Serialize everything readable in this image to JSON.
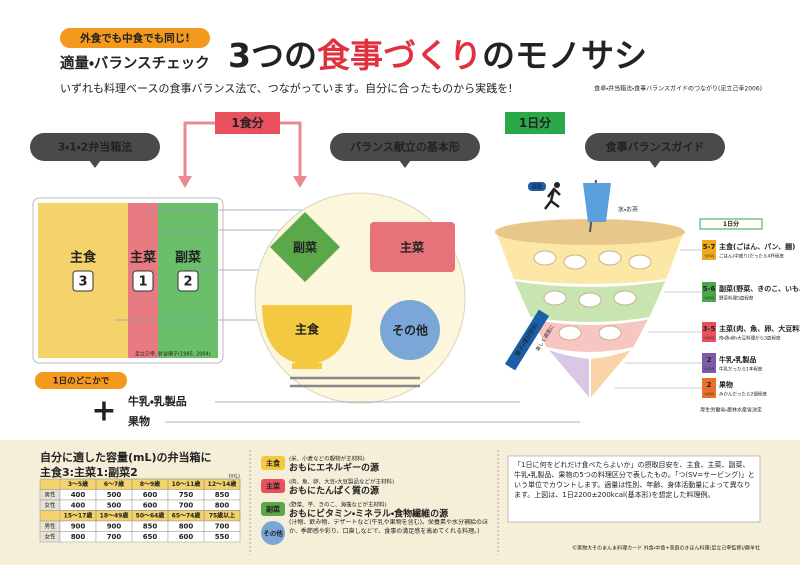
{
  "header": {
    "badge": "外食でも中食でも同じ!",
    "subtitle": "適量・バランスチェック",
    "title": [
      "3つの",
      "食事づくり",
      "のモノサシ"
    ],
    "lead": "いずれも料理ベースの食事バランス法で、つながっています。自分に合ったものから実践を!",
    "source": "食卓・弁当箱法・食事バランスガイドのつながり(足立己幸2006)"
  },
  "links": {
    "meal": "1食分",
    "day": "1日分"
  },
  "sections": [
    "3・1・2弁当箱法",
    "バランス献立の基本形",
    "食事バランスガイド"
  ],
  "bento": {
    "parts": [
      {
        "name": "主食",
        "ratio": 3
      },
      {
        "name": "主菜",
        "ratio": 1
      },
      {
        "name": "副菜",
        "ratio": 2
      }
    ],
    "credit": "足立己幸, 針谷順子(1985, 2004)"
  },
  "extras": {
    "label": "1日のどこかで",
    "plus": "+",
    "items": [
      "牛乳・乳製品",
      "果物"
    ]
  },
  "plate": {
    "items": [
      "副菜",
      "主菜",
      "主食",
      "その他"
    ]
  },
  "guide": {
    "exercise": "運動",
    "water": "水・お茶",
    "header": "1日分",
    "unit": "つ(SV)",
    "rows": [
      {
        "sv": "5-7",
        "name": "主食(ごはん、パン、麺)",
        "detail": "ごはん(中盛り)だったら4杯程度"
      },
      {
        "sv": "5-6",
        "name": "副菜(野菜、きのこ、いも、海藻料理)",
        "detail": "野菜料理5皿程度"
      },
      {
        "sv": "3-5",
        "name": "主菜(肉、魚、卵、大豆料理)",
        "detail": "肉・魚・卵・大豆料理から3皿程度"
      },
      {
        "sv": "2",
        "name": "牛乳・乳製品",
        "detail": "牛乳だったら1本程度"
      },
      {
        "sv": "2",
        "name": "果物",
        "detail": "みかんだったら2個程度"
      }
    ],
    "snack": "菓子・嗜好飲料",
    "snack_note": "楽しく適度に",
    "authority": "厚生労働省・農林水産省決定"
  },
  "capacity": {
    "title1": "自分に適した容量(mL)の弁当箱に",
    "title2": "主食3:主菜1:副菜2",
    "unit": "(mL)",
    "tables": [
      {
        "header": [
          "3〜5歳",
          "6〜7歳",
          "8〜9歳",
          "10〜11歳",
          "12〜14歳"
        ],
        "rows": [
          {
            "label": "男性",
            "values": [
              400,
              500,
              600,
              750,
              850
            ]
          },
          {
            "label": "女性",
            "values": [
              400,
              500,
              600,
              700,
              800
            ]
          }
        ]
      },
      {
        "header": [
          "15〜17歳",
          "18〜49歳",
          "50〜64歳",
          "65〜74歳",
          "75歳以上"
        ],
        "rows": [
          {
            "label": "男性",
            "values": [
              900,
              900,
              850,
              800,
              700
            ]
          },
          {
            "label": "女性",
            "values": [
              800,
              700,
              650,
              600,
              550
            ]
          }
        ]
      }
    ]
  },
  "groups": [
    {
      "name": "主食",
      "material": "(米、小麦などの穀物が主材料)",
      "role": "おもにエネルギーの源"
    },
    {
      "name": "主菜",
      "material": "(肉、魚、卵、大豆・大豆製品などが主材料)",
      "role": "おもにたんぱく質の源"
    },
    {
      "name": "副菜",
      "material": "(野菜、芋、きのこ、海藻などが主材料)",
      "role": "おもにビタミン・ミネラル・食物繊維の源"
    },
    {
      "name": "その他",
      "material": "(汁物、飲み物、デザートなど(牛乳や果物を含む)。栄養素や水分補給のほか、季節感や彩り、口直しなどで、食事の満足感を高めてくれる料理。)"
    }
  ],
  "note": "「1日に何をどれだけ食べたらよいか」の摂取目安を、主食、主菜、副菜、牛乳・乳製品、果物の5つの料理区分で表したもの。「つ(SV=サービング)」という単位でカウントします。適量は性別、年齢、身体活動量によって異なります。上図は、1日2200±200kcal(基本形)を想定した料理例。",
  "footer": "©実物大そのまんま料理カード 外食・中食+家庭のきほん料理(足立己幸監修)/群羊社"
}
